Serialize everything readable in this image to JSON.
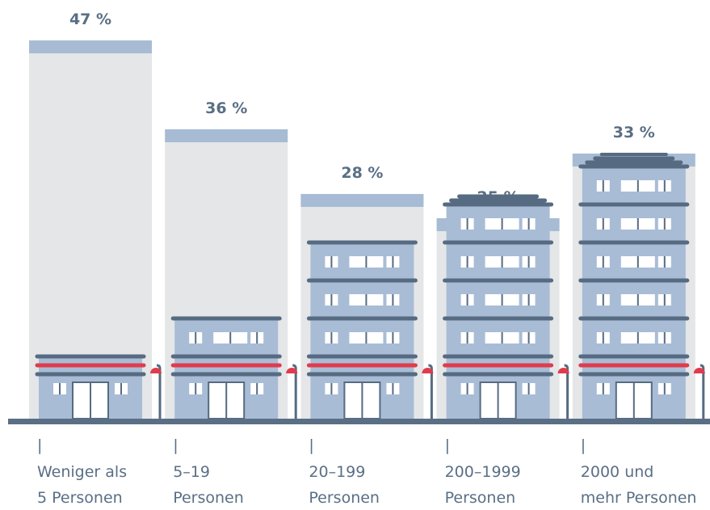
{
  "chart_data": {
    "type": "bar",
    "categories": [
      [
        "Weniger als",
        "5 Personen"
      ],
      [
        "5–19",
        "Personen"
      ],
      [
        "20–199",
        "Personen"
      ],
      [
        "200–1999",
        "Personen"
      ],
      [
        "2000 und",
        "mehr Personen"
      ]
    ],
    "values": [
      47,
      36,
      28,
      25,
      33
    ],
    "value_labels": [
      "47 %",
      "36 %",
      "28 %",
      "25 %",
      "33 %"
    ],
    "color": "#e4e6e8"
  }
}
